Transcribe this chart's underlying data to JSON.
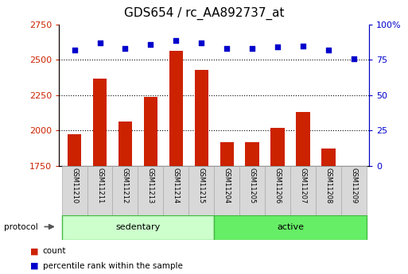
{
  "title": "GDS654 / rc_AA892737_at",
  "samples": [
    "GSM11210",
    "GSM11211",
    "GSM11212",
    "GSM11213",
    "GSM11214",
    "GSM11215",
    "GSM11204",
    "GSM11205",
    "GSM11206",
    "GSM11207",
    "GSM11208",
    "GSM11209"
  ],
  "counts": [
    1975,
    2370,
    2065,
    2240,
    2565,
    2430,
    1915,
    1920,
    2020,
    2130,
    1870,
    1750
  ],
  "percentile_ranks": [
    82,
    87,
    83,
    86,
    89,
    87,
    83,
    83,
    84,
    85,
    82,
    76
  ],
  "sed_count": 6,
  "act_count": 6,
  "bar_color": "#cc2200",
  "dot_color": "#0000cc",
  "ylim_left": [
    1750,
    2750
  ],
  "ylim_right": [
    0,
    100
  ],
  "yticks_left": [
    1750,
    2000,
    2250,
    2500,
    2750
  ],
  "yticks_right": [
    0,
    25,
    50,
    75,
    100
  ],
  "ytick_right_labels": [
    "0",
    "25",
    "50",
    "75",
    "100%"
  ],
  "grid_lines": [
    2000,
    2250,
    2500
  ],
  "title_fontsize": 11,
  "tick_fontsize": 8,
  "axis_label_color_left": "#cc2200",
  "axis_label_color_right": "#0000cc",
  "sample_bg_color": "#d8d8d8",
  "sample_border_color": "#aaaaaa",
  "sed_color": "#ccffcc",
  "act_color": "#66ee66",
  "protocol_border_color": "#44bb44"
}
